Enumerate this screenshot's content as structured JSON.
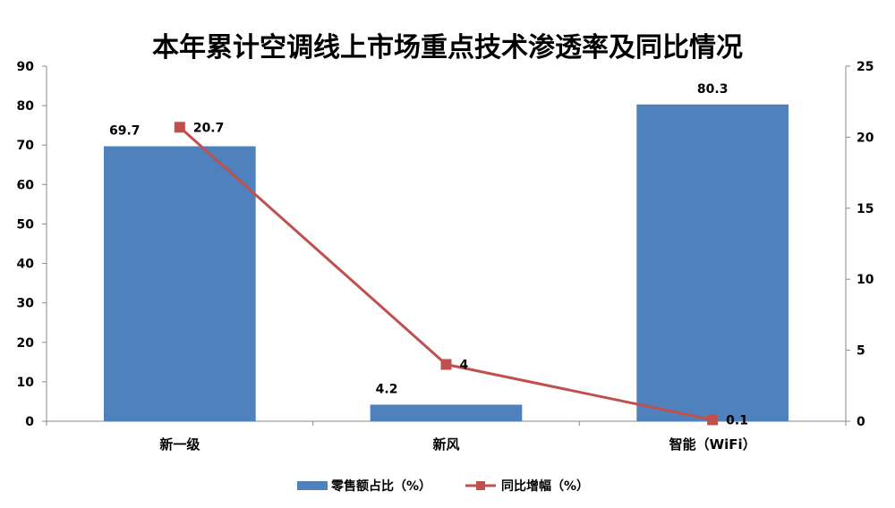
{
  "chart_data": {
    "type": "bar",
    "title": "本年累计空调线上市场重点技术渗透率及同比情况",
    "categories": [
      "新一级",
      "新风",
      "智能（WiFi）"
    ],
    "series": [
      {
        "name": "零售额占比（%）",
        "type": "bar",
        "axis": "left",
        "color": "#4F81BD",
        "values": [
          69.7,
          4.2,
          80.3
        ],
        "labels": [
          "69.7",
          "4.2",
          "80.3"
        ]
      },
      {
        "name": "同比增幅（%）",
        "type": "line",
        "axis": "right",
        "color": "#C0504D",
        "values": [
          20.7,
          4,
          0.1
        ],
        "labels": [
          "20.7",
          "4",
          "0.1"
        ]
      }
    ],
    "y_left": {
      "min": 0,
      "max": 90,
      "ticks": [
        "0",
        "10",
        "20",
        "30",
        "40",
        "50",
        "60",
        "70",
        "80",
        "90"
      ]
    },
    "y_right": {
      "min": 0,
      "max": 25,
      "ticks": [
        "0",
        "5",
        "10",
        "15",
        "20",
        "25"
      ]
    },
    "grid": false,
    "legend_position": "bottom"
  }
}
